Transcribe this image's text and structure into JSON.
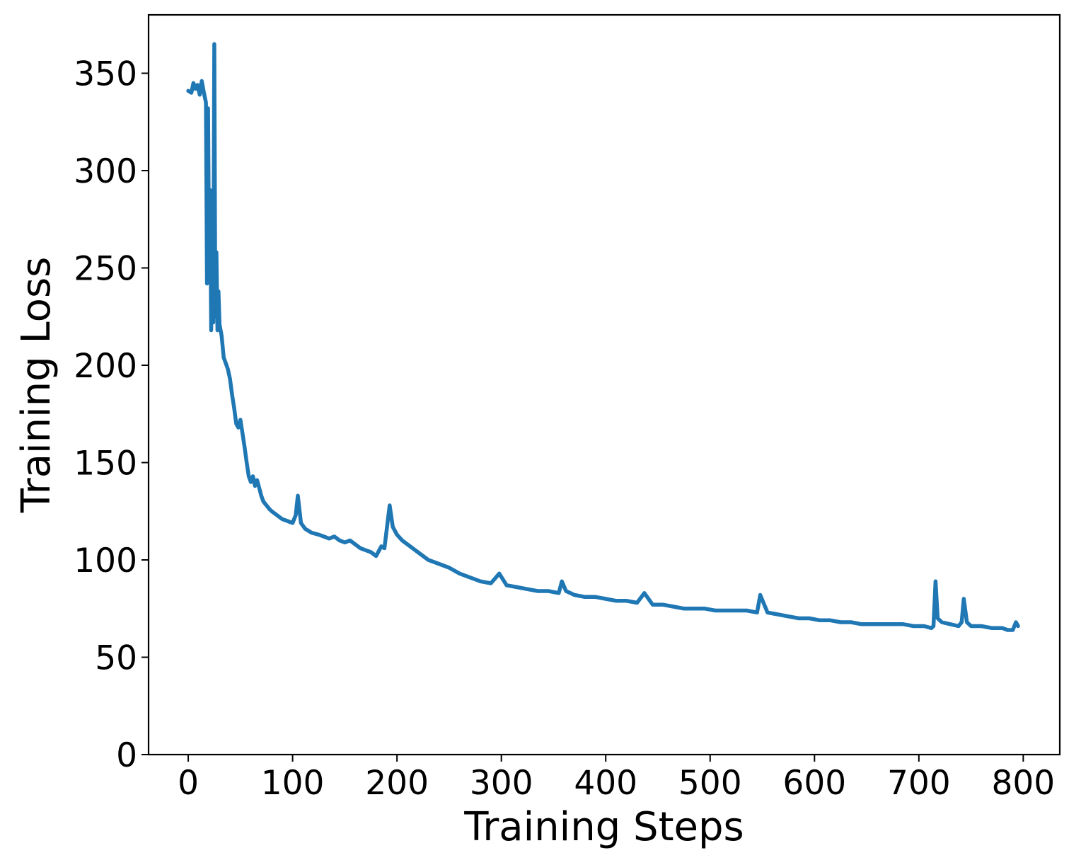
{
  "chart_data": {
    "type": "line",
    "title": "",
    "xlabel": "Training Steps",
    "ylabel": "Training Loss",
    "xlim": [
      -38,
      835
    ],
    "ylim": [
      0,
      380
    ],
    "x_ticks": [
      0,
      100,
      200,
      300,
      400,
      500,
      600,
      700,
      800
    ],
    "y_ticks": [
      0,
      50,
      100,
      150,
      200,
      250,
      300,
      350
    ],
    "grid": false,
    "legend": "none",
    "series": [
      {
        "color": "#1f77b4",
        "x": [
          0,
          3,
          5,
          7,
          9,
          11,
          13,
          15,
          17,
          18,
          19,
          20,
          21,
          22,
          23,
          24,
          25,
          26,
          27,
          28,
          29,
          30,
          32,
          34,
          36,
          38,
          40,
          42,
          44,
          46,
          48,
          50,
          52,
          54,
          56,
          58,
          60,
          62,
          64,
          66,
          68,
          70,
          72,
          75,
          78,
          80,
          85,
          90,
          95,
          100,
          103,
          105,
          108,
          112,
          118,
          125,
          130,
          135,
          140,
          145,
          150,
          155,
          160,
          165,
          170,
          175,
          180,
          185,
          188,
          190,
          193,
          196,
          200,
          205,
          210,
          215,
          220,
          225,
          230,
          240,
          250,
          260,
          270,
          280,
          290,
          298,
          305,
          315,
          325,
          335,
          345,
          355,
          358,
          362,
          370,
          380,
          390,
          400,
          410,
          420,
          430,
          437,
          445,
          455,
          465,
          475,
          485,
          495,
          505,
          515,
          525,
          535,
          545,
          548,
          555,
          565,
          575,
          585,
          595,
          605,
          615,
          625,
          635,
          645,
          655,
          665,
          675,
          685,
          695,
          705,
          712,
          714,
          716,
          718,
          722,
          730,
          738,
          741,
          743,
          746,
          750,
          760,
          770,
          780,
          785,
          790,
          793,
          795
        ],
        "y": [
          341,
          340,
          345,
          342,
          344,
          339,
          346,
          340,
          335,
          242,
          332,
          245,
          290,
          218,
          285,
          222,
          365,
          225,
          258,
          218,
          238,
          221,
          215,
          204,
          201,
          198,
          193,
          185,
          178,
          170,
          168,
          172,
          165,
          158,
          150,
          143,
          140,
          143,
          138,
          141,
          137,
          133,
          130,
          128,
          126,
          125,
          123,
          121,
          120,
          119,
          123,
          133,
          119,
          116,
          114,
          113,
          112,
          111,
          112,
          110,
          109,
          110,
          108,
          106,
          105,
          104,
          102,
          107,
          106,
          115,
          128,
          117,
          113,
          110,
          108,
          106,
          104,
          102,
          100,
          98,
          96,
          93,
          91,
          89,
          88,
          93,
          87,
          86,
          85,
          84,
          84,
          83,
          89,
          84,
          82,
          81,
          81,
          80,
          79,
          79,
          78,
          83,
          77,
          77,
          76,
          75,
          75,
          75,
          74,
          74,
          74,
          74,
          73,
          82,
          73,
          72,
          71,
          70,
          70,
          69,
          69,
          68,
          68,
          67,
          67,
          67,
          67,
          67,
          66,
          66,
          65,
          66,
          89,
          70,
          68,
          67,
          66,
          68,
          80,
          68,
          66,
          66,
          65,
          65,
          64,
          64,
          68,
          66
        ]
      }
    ]
  }
}
